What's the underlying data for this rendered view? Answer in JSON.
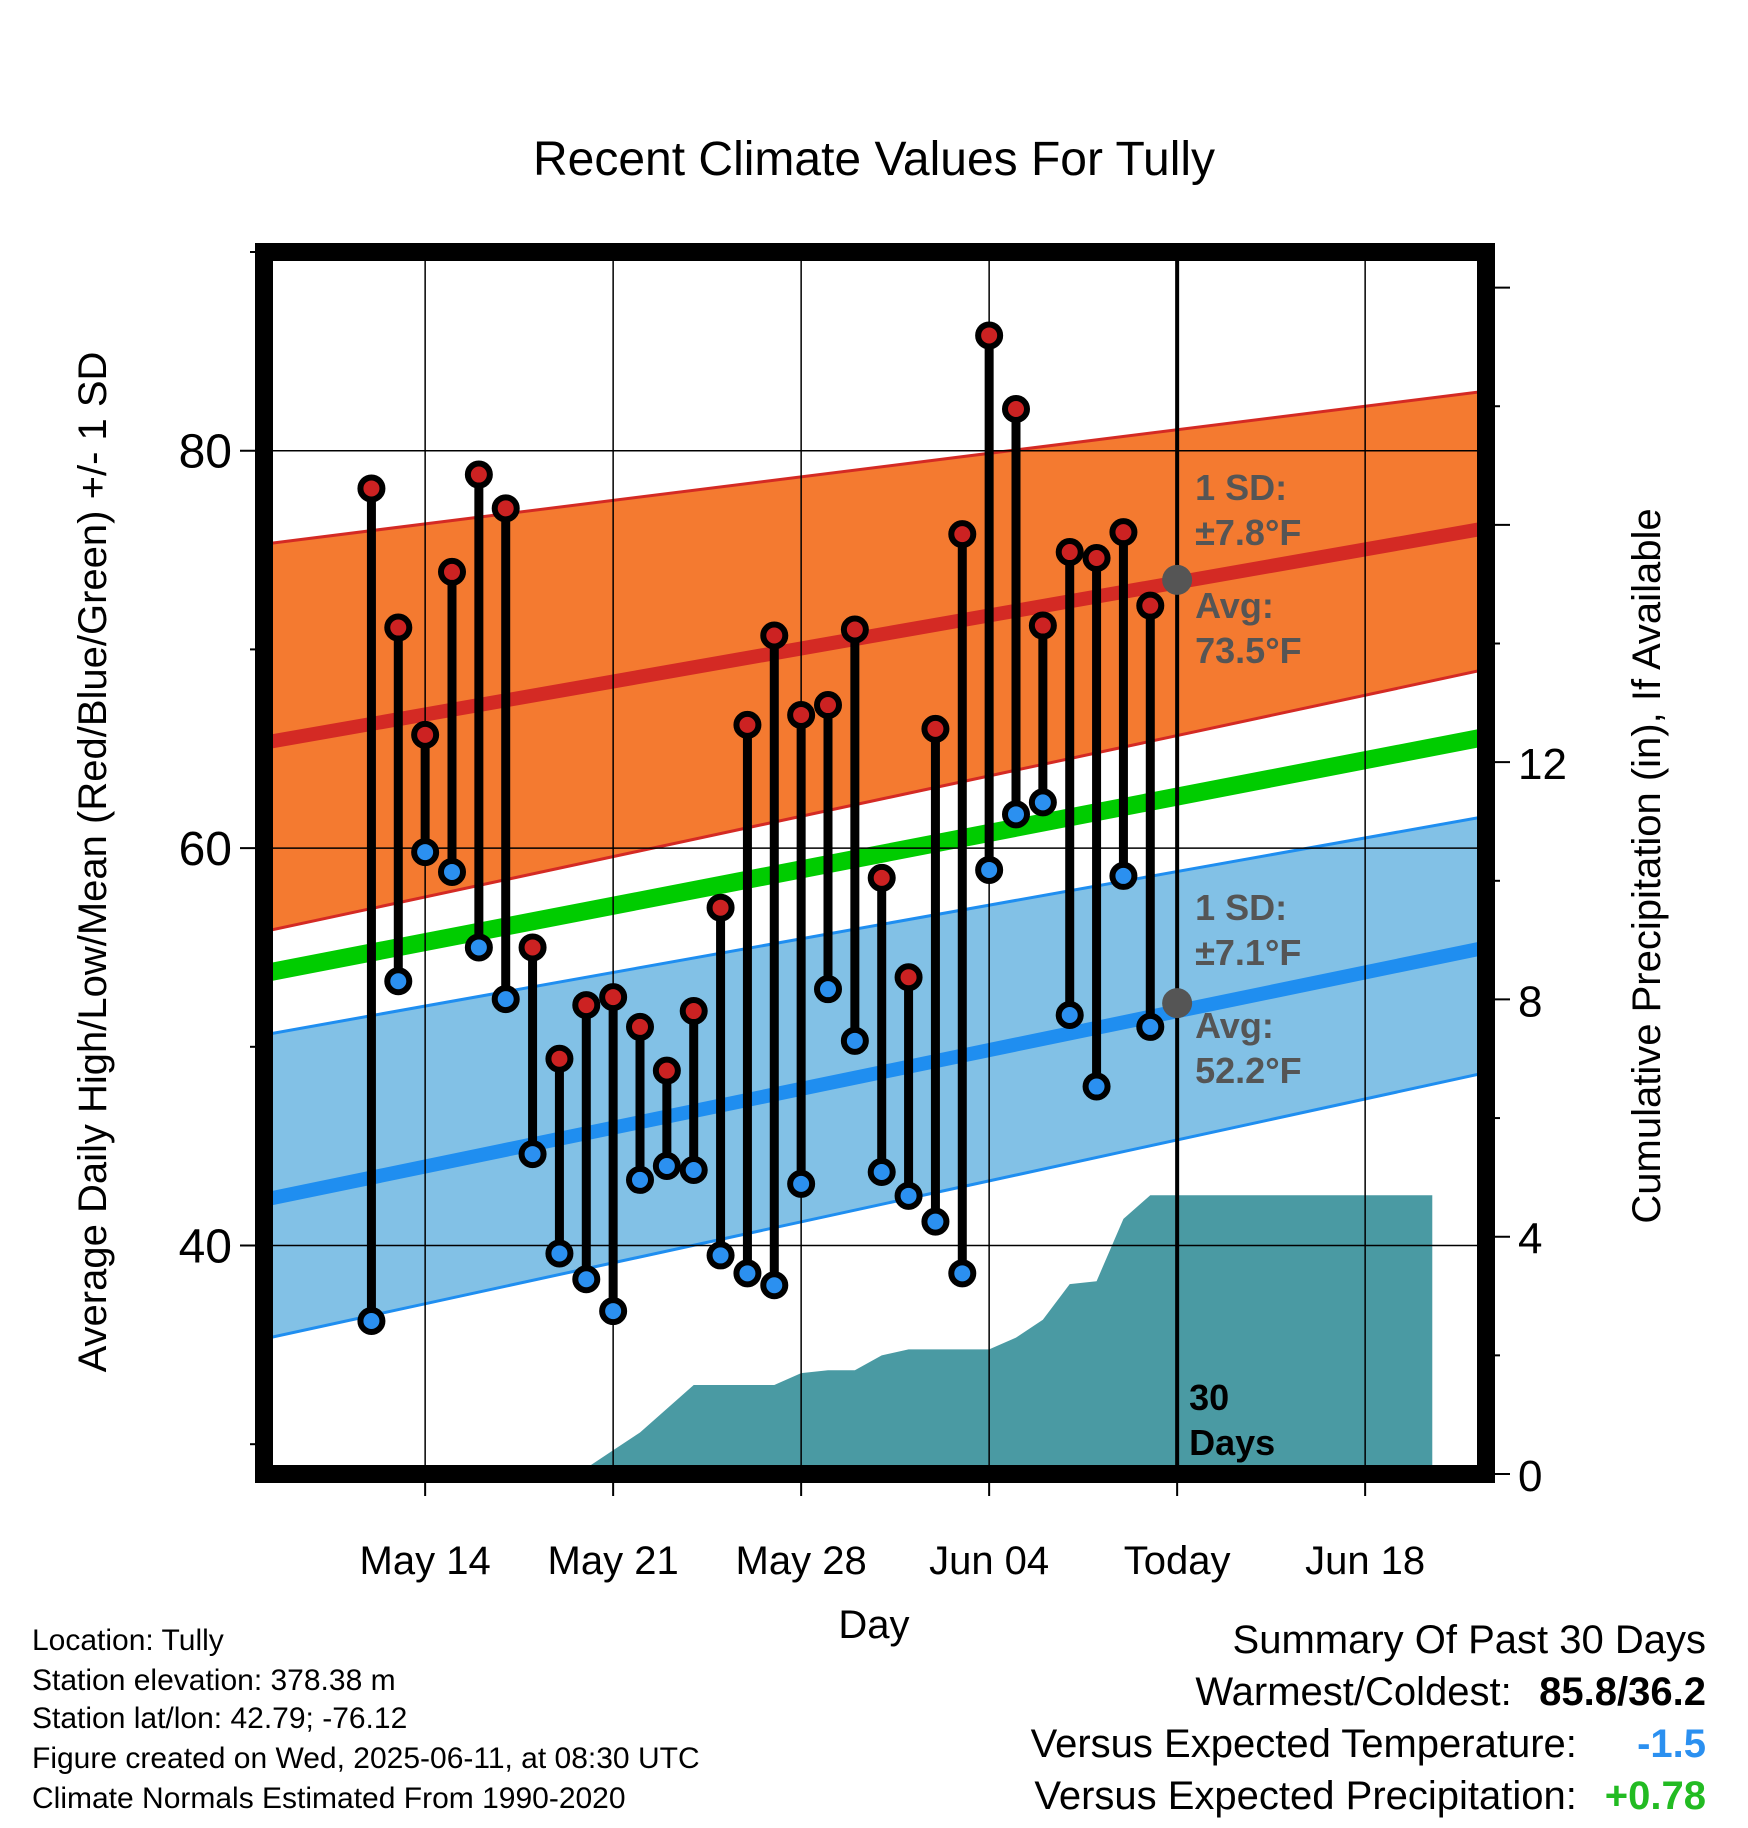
{
  "title": "Recent Climate Values For Tully",
  "colors": {
    "high_band": "#f47a30",
    "high_edge": "#d42a24",
    "low_band": "#82c1e6",
    "low_edge": "#1f8ef0",
    "mean": "#00cc00",
    "precip": "#4a9aa3",
    "high_dot": "#cc2222",
    "low_dot": "#2b90f0",
    "marker": "#555555",
    "warm_text": "#000000",
    "temp_anom": "#2b90f0",
    "precip_anom": "#22bb22"
  },
  "chart_data": {
    "type": "line",
    "title": "Recent Climate Values For Tully",
    "xlabel": "Day",
    "ylabel": "Average Daily High/Low/Mean (Red/Blue/Green) +/- 1 SD",
    "ylabel_right": "Cumulative Precipitation (in), If Available",
    "ylim": [
      28.5,
      90
    ],
    "ylim_right": [
      0,
      20.6
    ],
    "x_range": [
      -34,
      11.5
    ],
    "yticks": [
      40,
      60,
      80
    ],
    "yticks_right": [
      0,
      4,
      8,
      12
    ],
    "xticks": [
      {
        "day": -28,
        "label": "May 14"
      },
      {
        "day": -21,
        "label": "May 21"
      },
      {
        "day": -14,
        "label": "May 28"
      },
      {
        "day": -7,
        "label": "Jun 04"
      },
      {
        "day": 0,
        "label": "Today"
      },
      {
        "day": 7,
        "label": "Jun 18"
      }
    ],
    "normals": {
      "days": [
        -34,
        11.5
      ],
      "high_mean": [
        65.3,
        76.1
      ],
      "high_upper": [
        75.3,
        83.0
      ],
      "high_lower": [
        55.8,
        69.0
      ],
      "low_mean": [
        42.3,
        55.0
      ],
      "low_upper": [
        50.6,
        61.6
      ],
      "low_lower": [
        35.3,
        48.7
      ],
      "overall_mean": [
        53.7,
        65.6
      ]
    },
    "obs_days": [
      -30,
      -29,
      -28,
      -27,
      -26,
      -25,
      -24,
      -23,
      -22,
      -21,
      -20,
      -19,
      -18,
      -17,
      -16,
      -15,
      -14,
      -13,
      -12,
      -11,
      -10,
      -9,
      -8,
      -7,
      -6,
      -5,
      -4,
      -3,
      -2,
      -1
    ],
    "series": [
      {
        "name": "High",
        "values": [
          78.1,
          71.1,
          65.7,
          73.9,
          78.8,
          77.1,
          55.0,
          49.4,
          52.1,
          52.5,
          51.0,
          48.8,
          51.8,
          57.0,
          66.2,
          70.7,
          66.7,
          67.2,
          71.0,
          58.5,
          53.5,
          66.0,
          75.8,
          85.8,
          82.1,
          71.2,
          74.9,
          74.6,
          75.9,
          72.2
        ]
      },
      {
        "name": "Low",
        "values": [
          36.2,
          53.3,
          59.8,
          58.8,
          55.0,
          52.4,
          44.6,
          39.6,
          38.3,
          36.7,
          43.3,
          44.0,
          43.8,
          39.5,
          38.6,
          38.0,
          43.1,
          52.9,
          50.3,
          43.7,
          42.5,
          41.2,
          38.6,
          58.9,
          61.7,
          62.3,
          51.6,
          48.0,
          58.6,
          51.0
        ]
      }
    ],
    "precip": {
      "days": [
        -30,
        -25,
        -24,
        -22,
        -21,
        -20,
        -19,
        -18,
        -17,
        -15,
        -14,
        -13,
        -12,
        -11,
        -10,
        -9,
        -8,
        -7,
        -6,
        -5,
        -4,
        -3,
        -2,
        -1,
        0,
        9.5
      ],
      "values": [
        0,
        0,
        0.1,
        0.1,
        0.4,
        0.7,
        1.1,
        1.5,
        1.5,
        1.5,
        1.7,
        1.75,
        1.75,
        2.0,
        2.1,
        2.1,
        2.1,
        2.1,
        2.3,
        2.6,
        3.2,
        3.25,
        4.3,
        4.7,
        4.7,
        4.7
      ]
    },
    "grid": true,
    "high_annotation": {
      "sd": "1 SD:",
      "sd_value": "±7.8°F",
      "avg": "Avg:",
      "avg_value": "73.5°F"
    },
    "low_annotation": {
      "sd": "1 SD:",
      "sd_value": "±7.1°F",
      "avg": "Avg:",
      "avg_value": "52.2°F"
    },
    "today_high": 73.5,
    "today_low": 52.2,
    "window_label": [
      "30",
      "Days"
    ]
  },
  "footer": {
    "location": "Location: Tully",
    "elevation": "Station elevation: 378.38 m",
    "latlon": "Station lat/lon: 42.79; -76.12",
    "created": "Figure created on Wed, 2025-06-11, at 08:30 UTC",
    "normals": "Climate Normals Estimated From 1990-2020"
  },
  "summary": {
    "title": "Summary Of Past 30 Days",
    "warmest_label": "Warmest/Coldest:",
    "warmest_value": "85.8/36.2",
    "temp_label": "Versus Expected Temperature:",
    "temp_value": "-1.5",
    "precip_label": "Versus Expected Precipitation:",
    "precip_value": "+0.78"
  }
}
